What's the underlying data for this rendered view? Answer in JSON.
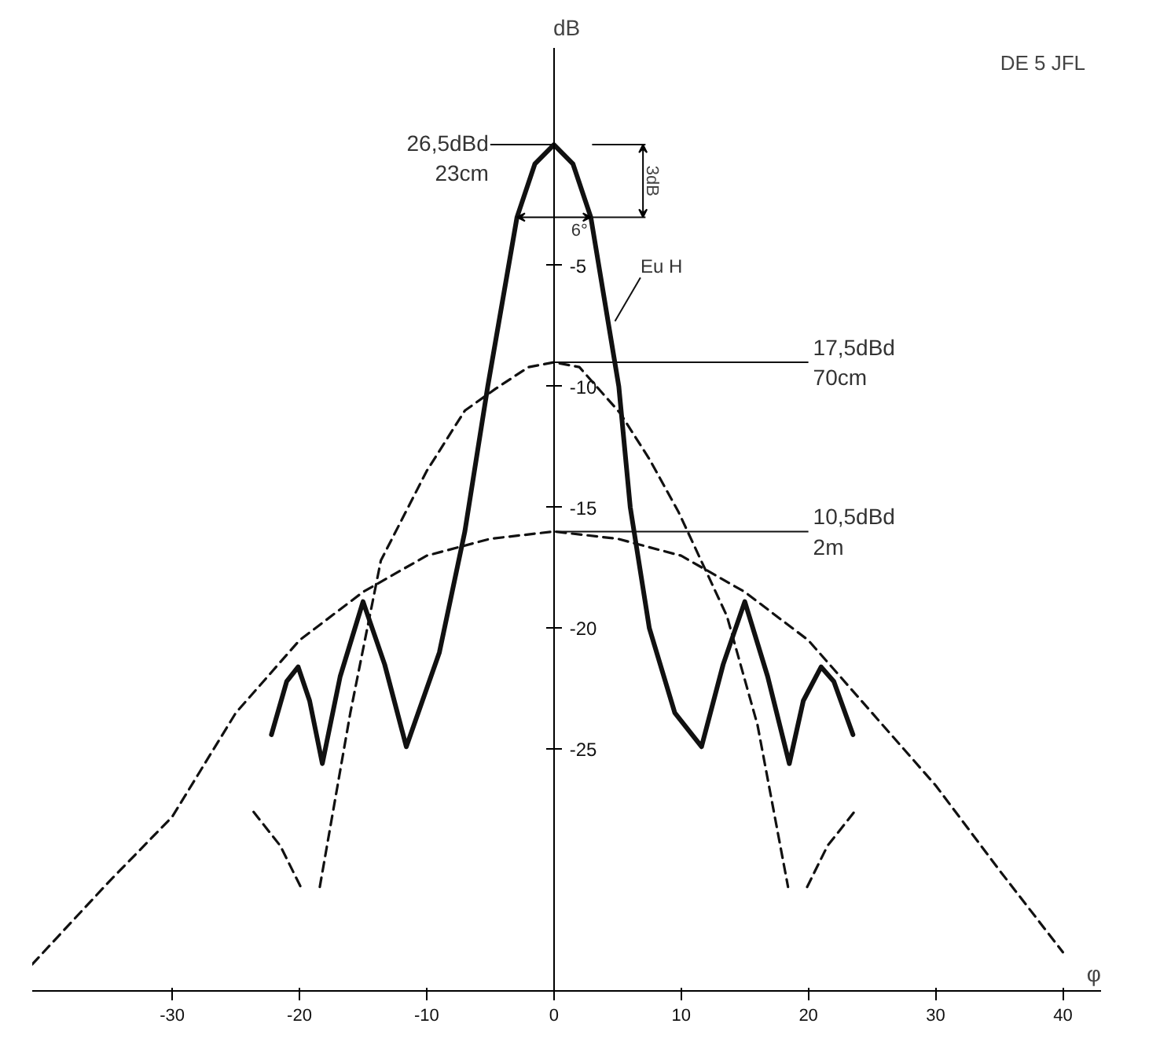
{
  "chart_data": {
    "type": "line",
    "ylabel": "dB",
    "xlabel": "φ",
    "xlim": [
      -41,
      43
    ],
    "ylim": [
      -35,
      4
    ],
    "xticks": [
      -30,
      -20,
      -10,
      0,
      10,
      20,
      30,
      40
    ],
    "yticks": [
      -5,
      -10,
      -15,
      -20,
      -25
    ],
    "grid": false,
    "marker": "none",
    "series": [
      {
        "color": "#111111",
        "line_style": "solid",
        "x": [
          -22.2,
          -21,
          -20.1,
          -19.2,
          -18.2,
          -16.8,
          -15,
          -13.3,
          -11.6,
          -9,
          -7,
          -5.2,
          -2.9,
          -1.5,
          0,
          1.5,
          2.9,
          5.1,
          6,
          7.5,
          9.5,
          11.6,
          13.3,
          15,
          16.8,
          18.5,
          19.6,
          21,
          22,
          23.5
        ],
        "values": [
          -24.4,
          -22.2,
          -21.6,
          -23,
          -25.6,
          -22,
          -18.9,
          -21.5,
          -24.9,
          -21,
          -16,
          -10,
          -3,
          -0.8,
          0,
          -0.8,
          -3,
          -10,
          -15,
          -20,
          -23.5,
          -24.9,
          -21.5,
          -18.9,
          -22,
          -25.6,
          -23,
          -21.6,
          -22.2,
          -24.4
        ]
      },
      {
        "color": "#111111",
        "line_style": "dashed",
        "x": [
          -23.6,
          -21.5,
          -19.9,
          -19.1,
          -18.4,
          -16,
          -13.6,
          -10,
          -7,
          -4.6,
          -2,
          0,
          2,
          5.2,
          7.5,
          9.8,
          13.6,
          16,
          18.4,
          19.1,
          19.9,
          21.5,
          23.6
        ],
        "values": [
          -27.6,
          -29,
          -30.7,
          null,
          -30.7,
          -23.5,
          -17.2,
          -13.5,
          -11,
          -10.1,
          -9.2,
          -9,
          -9.2,
          -11.1,
          -13,
          -15.2,
          -19.5,
          -24,
          -30.7,
          null,
          -30.7,
          -29,
          -27.6
        ]
      },
      {
        "color": "#111111",
        "line_style": "dashed",
        "x": [
          -41,
          -35,
          -30,
          -25,
          -20,
          -15,
          -10,
          -5,
          0,
          5,
          10,
          15,
          20,
          25,
          30,
          35,
          40
        ],
        "values": [
          -33.9,
          -30.5,
          -27.8,
          -23.5,
          -20.5,
          -18.5,
          -17,
          -16.3,
          -16,
          -16.3,
          -17,
          -18.5,
          -20.5,
          -23.5,
          -26.5,
          -30,
          -33.4
        ]
      }
    ],
    "annotations": [
      {
        "text": "26,5dBd\n23cm",
        "x": 0,
        "y": 0
      },
      {
        "text": "17,5dBd\n70cm",
        "x": 0,
        "y": -9
      },
      {
        "text": "10,5dBd\n2m",
        "x": 0,
        "y": -16
      },
      {
        "text": "Eu H",
        "x": 4.8,
        "y": -7.3
      },
      {
        "text": "6°",
        "x": 2.9,
        "y": -3
      },
      "3dB",
      "DE 5 JFL"
    ]
  }
}
